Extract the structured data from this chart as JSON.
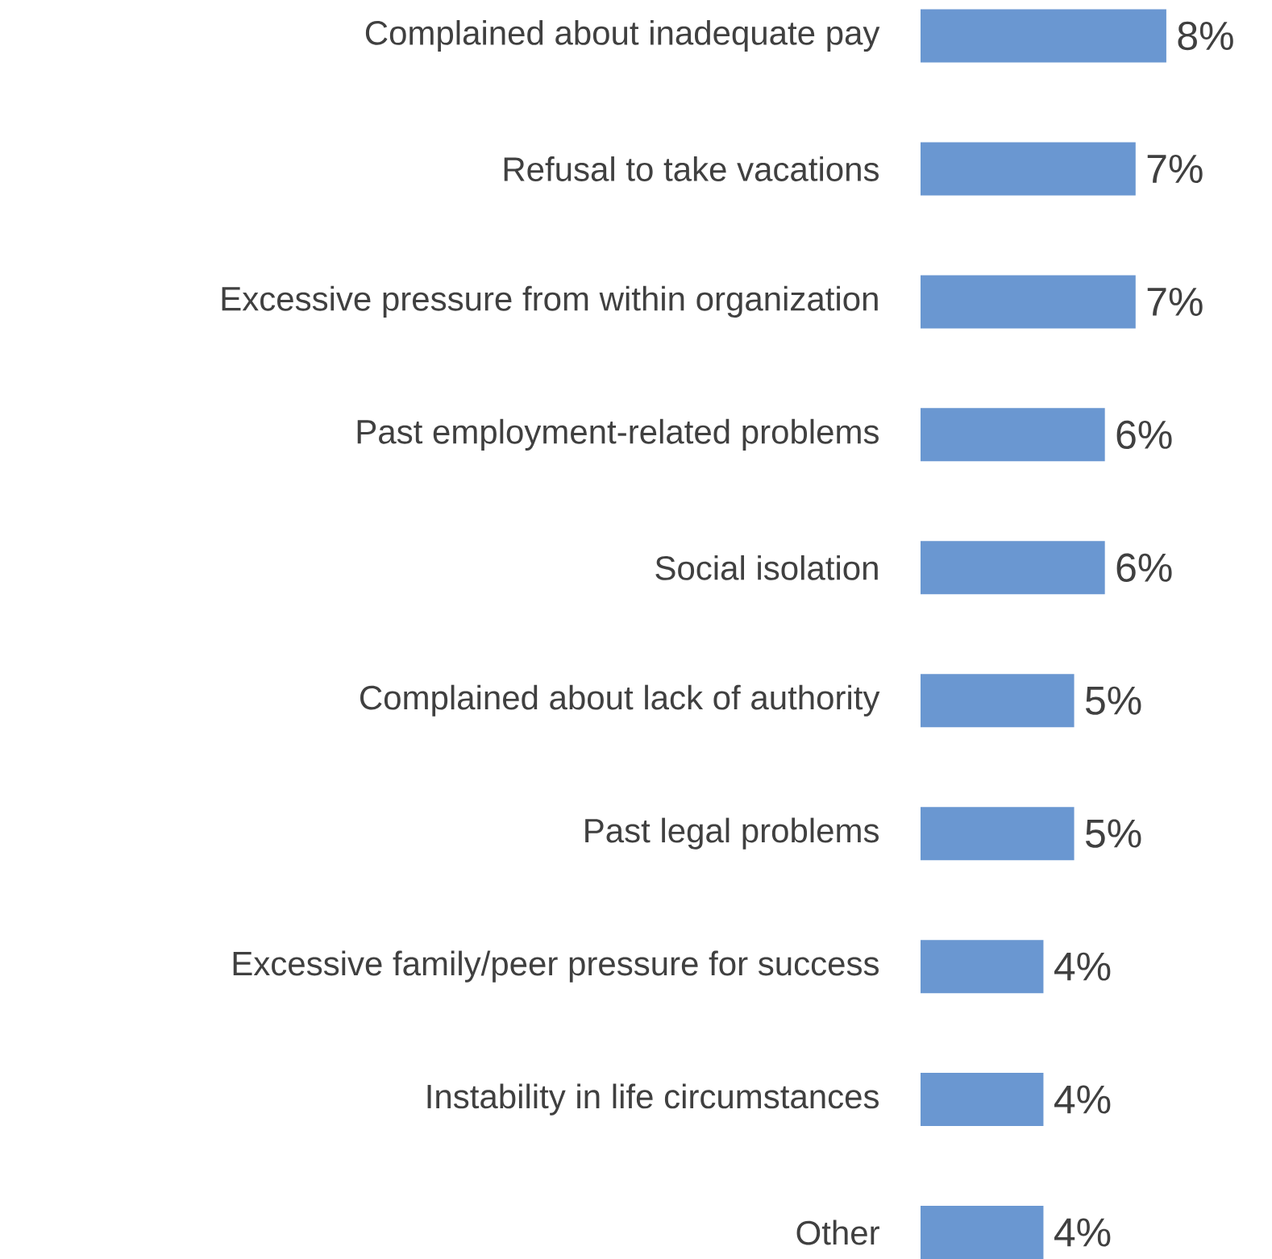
{
  "chart_data": {
    "type": "bar",
    "orientation": "horizontal",
    "categories": [
      "Complained about inadequate pay",
      "Refusal to take vacations",
      "Excessive pressure from within organization",
      "Past employment-related problems",
      "Social isolation",
      "Complained about lack of authority",
      "Past legal problems",
      "Excessive family/peer pressure for success",
      "Instability in life circumstances",
      "Other"
    ],
    "values": [
      8,
      7,
      7,
      6,
      6,
      5,
      5,
      4,
      4,
      4
    ],
    "value_labels": [
      "8%",
      "7%",
      "7%",
      "6%",
      "6%",
      "5%",
      "5%",
      "4%",
      "4%",
      "4%"
    ],
    "color": "#6a97d1"
  }
}
